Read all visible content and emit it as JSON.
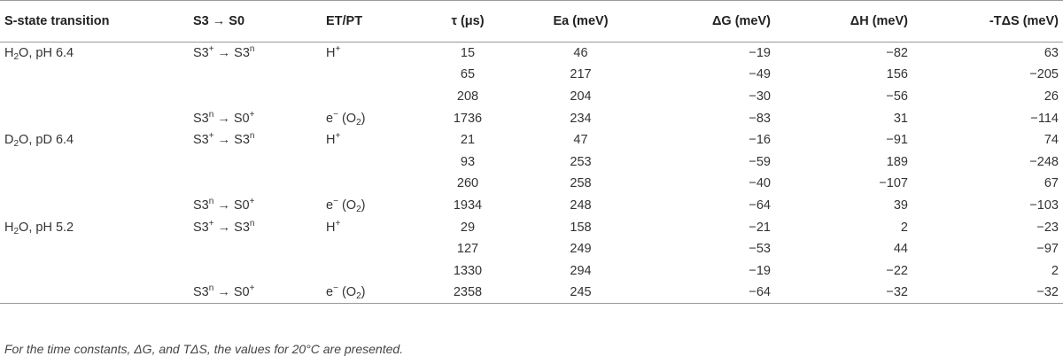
{
  "columns": [
    "S-state transition",
    "S3 → S0",
    "ET/PT",
    "τ (μs)",
    "Ea (meV)",
    "ΔG (meV)",
    "ΔH (meV)",
    "-TΔS (meV)"
  ],
  "rows": [
    {
      "cond": [
        "H",
        "2",
        "O, pH 6.4"
      ],
      "trans": [
        "S3",
        "+",
        " → S3",
        "n",
        ""
      ],
      "etpt": [
        "H",
        "+",
        ""
      ],
      "tau": "15",
      "ea": "46",
      "dg": "−19",
      "dh": "−82",
      "tds": "63"
    },
    {
      "cond": null,
      "trans": null,
      "etpt": null,
      "tau": "65",
      "ea": "217",
      "dg": "−49",
      "dh": "156",
      "tds": "−205"
    },
    {
      "cond": null,
      "trans": null,
      "etpt": null,
      "tau": "208",
      "ea": "204",
      "dg": "−30",
      "dh": "−56",
      "tds": "26"
    },
    {
      "cond": null,
      "trans": [
        "S3",
        "n",
        " → S0",
        "+",
        ""
      ],
      "etpt": [
        "e",
        "−",
        " (O",
        "2",
        ")"
      ],
      "tau": "1736",
      "ea": "234",
      "dg": "−83",
      "dh": "31",
      "tds": "−114"
    },
    {
      "cond": [
        "D",
        "2",
        "O, pD 6.4"
      ],
      "trans": [
        "S3",
        "+",
        " → S3",
        "n",
        ""
      ],
      "etpt": [
        "H",
        "+",
        ""
      ],
      "tau": "21",
      "ea": "47",
      "dg": "−16",
      "dh": "−91",
      "tds": "74"
    },
    {
      "cond": null,
      "trans": null,
      "etpt": null,
      "tau": "93",
      "ea": "253",
      "dg": "−59",
      "dh": "189",
      "tds": "−248"
    },
    {
      "cond": null,
      "trans": null,
      "etpt": null,
      "tau": "260",
      "ea": "258",
      "dg": "−40",
      "dh": "−107",
      "tds": "67"
    },
    {
      "cond": null,
      "trans": [
        "S3",
        "n",
        " → S0",
        "+",
        ""
      ],
      "etpt": [
        "e",
        "−",
        " (O",
        "2",
        ")"
      ],
      "tau": "1934",
      "ea": "248",
      "dg": "−64",
      "dh": "39",
      "tds": "−103"
    },
    {
      "cond": [
        "H",
        "2",
        "O, pH 5.2"
      ],
      "trans": [
        "S3",
        "+",
        " → S3",
        "n",
        ""
      ],
      "etpt": [
        "H",
        "+",
        ""
      ],
      "tau": "29",
      "ea": "158",
      "dg": "−21",
      "dh": "2",
      "tds": "−23"
    },
    {
      "cond": null,
      "trans": null,
      "etpt": null,
      "tau": "127",
      "ea": "249",
      "dg": "−53",
      "dh": "44",
      "tds": "−97"
    },
    {
      "cond": null,
      "trans": null,
      "etpt": null,
      "tau": "1330",
      "ea": "294",
      "dg": "−19",
      "dh": "−22",
      "tds": "2"
    },
    {
      "cond": null,
      "trans": [
        "S3",
        "n",
        " → S0",
        "+",
        ""
      ],
      "etpt": [
        "e",
        "−",
        " (O",
        "2",
        ")"
      ],
      "tau": "2358",
      "ea": "245",
      "dg": "−64",
      "dh": "−32",
      "tds": "−32"
    }
  ],
  "footnote": "For the time constants, ΔG, and TΔS, the values for 20°C are presented."
}
